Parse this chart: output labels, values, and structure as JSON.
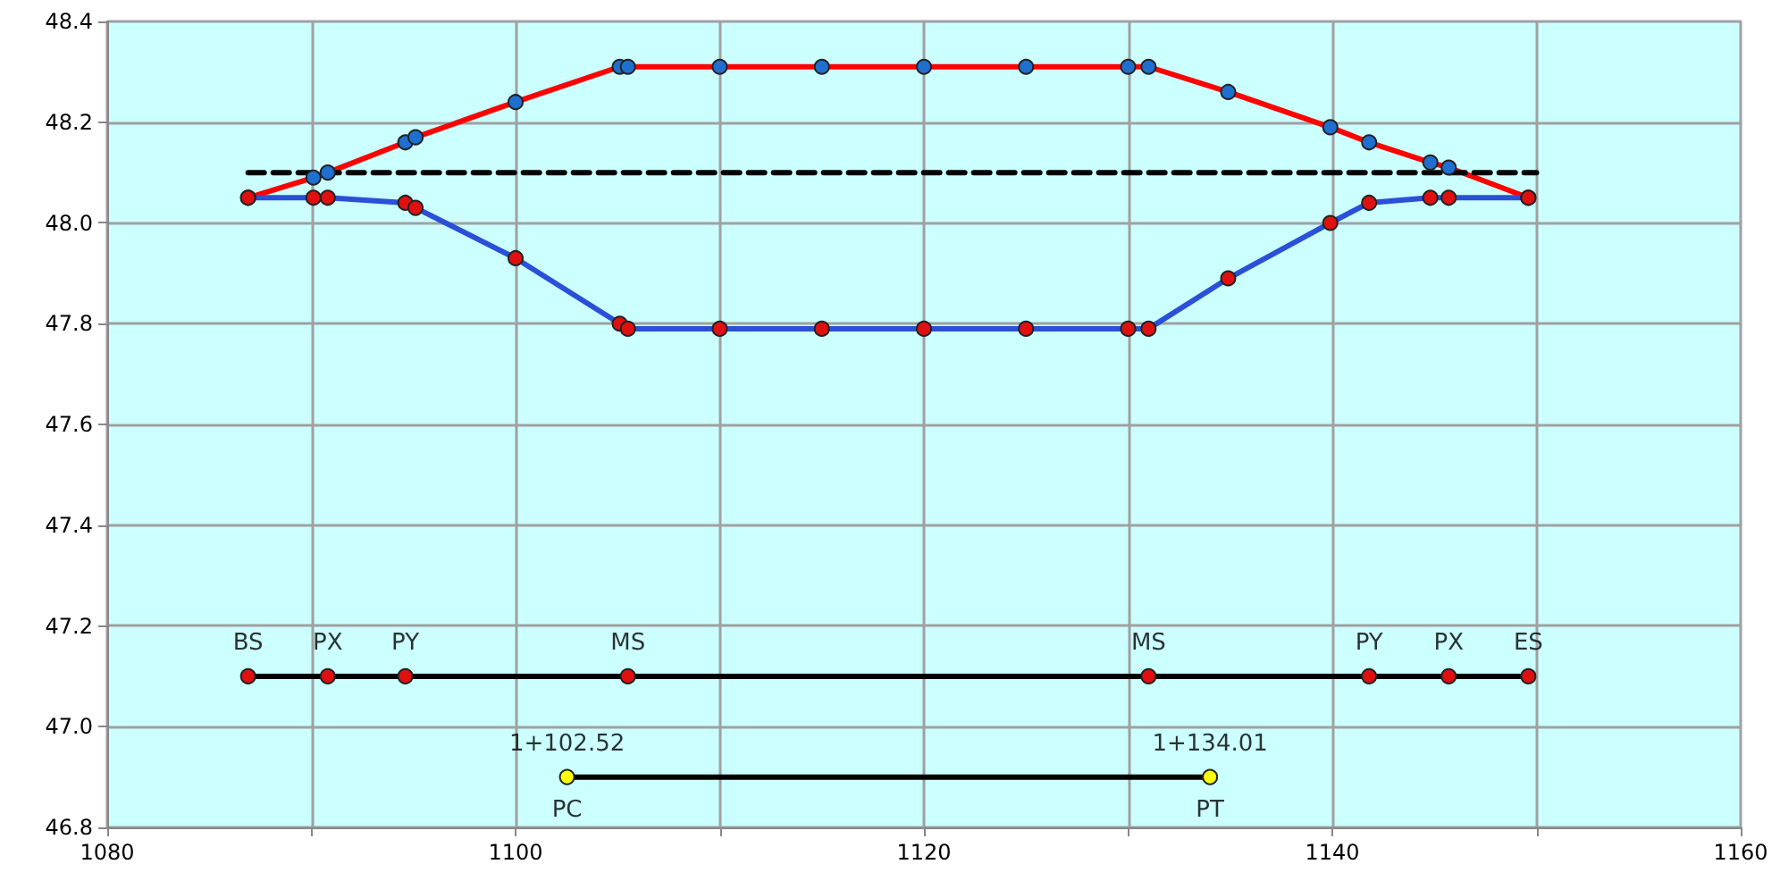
{
  "chart_data": {
    "type": "line",
    "grid": true,
    "marker": "circle",
    "xlim": [
      1080,
      1160
    ],
    "xticks": [
      1080,
      {
        "value": 1090,
        "label": null
      },
      1100,
      {
        "value": 1110,
        "label": null
      },
      1120,
      {
        "value": 1130,
        "label": null
      },
      1140,
      {
        "value": 1150,
        "label": null
      },
      1160
    ],
    "ylim": [
      46.8,
      48.4
    ],
    "yticks": [
      {
        "value": 46.8,
        "label": "46.8"
      },
      {
        "value": 47,
        "label": "47.0"
      },
      {
        "value": 47.2,
        "label": "47.2"
      },
      {
        "value": 47.4,
        "label": "47.4"
      },
      {
        "value": 47.6,
        "label": "47.6"
      },
      {
        "value": 47.8,
        "label": "47.8"
      },
      {
        "value": 48,
        "label": "48.0"
      },
      {
        "value": 48.2,
        "label": "48.2"
      },
      {
        "value": 48.4,
        "label": "48.4"
      }
    ],
    "series": [
      {
        "color": "#ff0000",
        "colors": [
          "#1f6fd0",
          "#1f6fd0",
          "#1f6fd0",
          "#1f6fd0",
          "#1f6fd0",
          "#1f6fd0",
          "#1f6fd0",
          "#1f6fd0",
          "#1f6fd0",
          "#1f6fd0",
          "#1f6fd0",
          "#1f6fd0",
          "#1f6fd0",
          "#1f6fd0",
          "#1f6fd0",
          "#1f6fd0",
          "#1f6fd0",
          "#1f6fd0",
          "#1f6fd0",
          "#1f6fd0"
        ],
        "x": [
          1086.9,
          1090.1,
          1090.8,
          1094.6,
          1095.1,
          1100,
          1105.1,
          1105.5,
          1110,
          1115,
          1120,
          1125,
          1130,
          1131,
          1134.9,
          1139.9,
          1141.8,
          1144.8,
          1145.7,
          1149.6
        ],
        "values": [
          48.05,
          48.09,
          48.1,
          48.16,
          48.17,
          48.24,
          48.31,
          48.31,
          48.31,
          48.31,
          48.31,
          48.31,
          48.31,
          48.31,
          48.26,
          48.19,
          48.16,
          48.12,
          48.11,
          48.05
        ]
      },
      {
        "color": "#2a50d8",
        "colors": [
          "#e01010",
          "#e01010",
          "#e01010",
          "#e01010",
          "#e01010",
          "#e01010",
          "#e01010",
          "#e01010",
          "#e01010",
          "#e01010",
          "#e01010",
          "#e01010",
          "#e01010",
          "#e01010",
          "#e01010",
          "#e01010",
          "#e01010",
          "#e01010",
          "#e01010",
          "#e01010"
        ],
        "x": [
          1086.9,
          1090.1,
          1090.8,
          1094.6,
          1095.1,
          1100,
          1105.1,
          1105.5,
          1110,
          1115,
          1120,
          1125,
          1130,
          1131,
          1134.9,
          1139.9,
          1141.8,
          1144.8,
          1145.7,
          1149.6
        ],
        "values": [
          48.05,
          48.05,
          48.05,
          48.04,
          48.03,
          47.93,
          47.8,
          47.79,
          47.79,
          47.79,
          47.79,
          47.79,
          47.79,
          47.79,
          47.89,
          48.0,
          48.04,
          48.05,
          48.05,
          48.05
        ]
      },
      {
        "color": "#000000",
        "marker": "none",
        "line_style": "dashed",
        "x": [
          1086.9,
          1150
        ],
        "values": [
          48.1,
          48.1
        ]
      },
      {
        "color": "#000000",
        "colors": [
          "#e01010",
          "#e01010",
          "#e01010",
          "#e01010",
          "#e01010",
          "#e01010",
          "#e01010",
          "#e01010"
        ],
        "x": [
          1086.9,
          1090.8,
          1094.6,
          1105.5,
          1131,
          1141.8,
          1145.7,
          1149.6
        ],
        "values": [
          47.1,
          47.1,
          47.1,
          47.1,
          47.1,
          47.1,
          47.1,
          47.1
        ]
      },
      {
        "color": "#000000",
        "colors": [
          "#ffff00",
          "#ffff00"
        ],
        "x": [
          1102.52,
          1134.01
        ],
        "values": [
          46.9,
          46.9
        ]
      }
    ],
    "annotations": [
      {
        "text": "BS",
        "x": 1086.9,
        "y": 47.1
      },
      {
        "text": "PX",
        "x": 1090.8,
        "y": 47.1
      },
      {
        "text": "PY",
        "x": 1094.6,
        "y": 47.1
      },
      {
        "text": "MS",
        "x": 1105.5,
        "y": 47.1
      },
      {
        "text": "MS",
        "x": 1131,
        "y": 47.1
      },
      {
        "text": "PY",
        "x": 1141.8,
        "y": 47.1
      },
      {
        "text": "PX",
        "x": 1145.7,
        "y": 47.1
      },
      {
        "text": "ES",
        "x": 1149.6,
        "y": 47.1
      },
      {
        "text": "1+102.52",
        "x": 1102.52,
        "y": 46.9
      },
      {
        "text": "1+134.01",
        "x": 1134.01,
        "y": 46.9
      },
      {
        "text": "PC",
        "x": 1102.52,
        "y": 46.9
      },
      {
        "text": "PT",
        "x": 1134.01,
        "y": 46.9
      }
    ]
  }
}
